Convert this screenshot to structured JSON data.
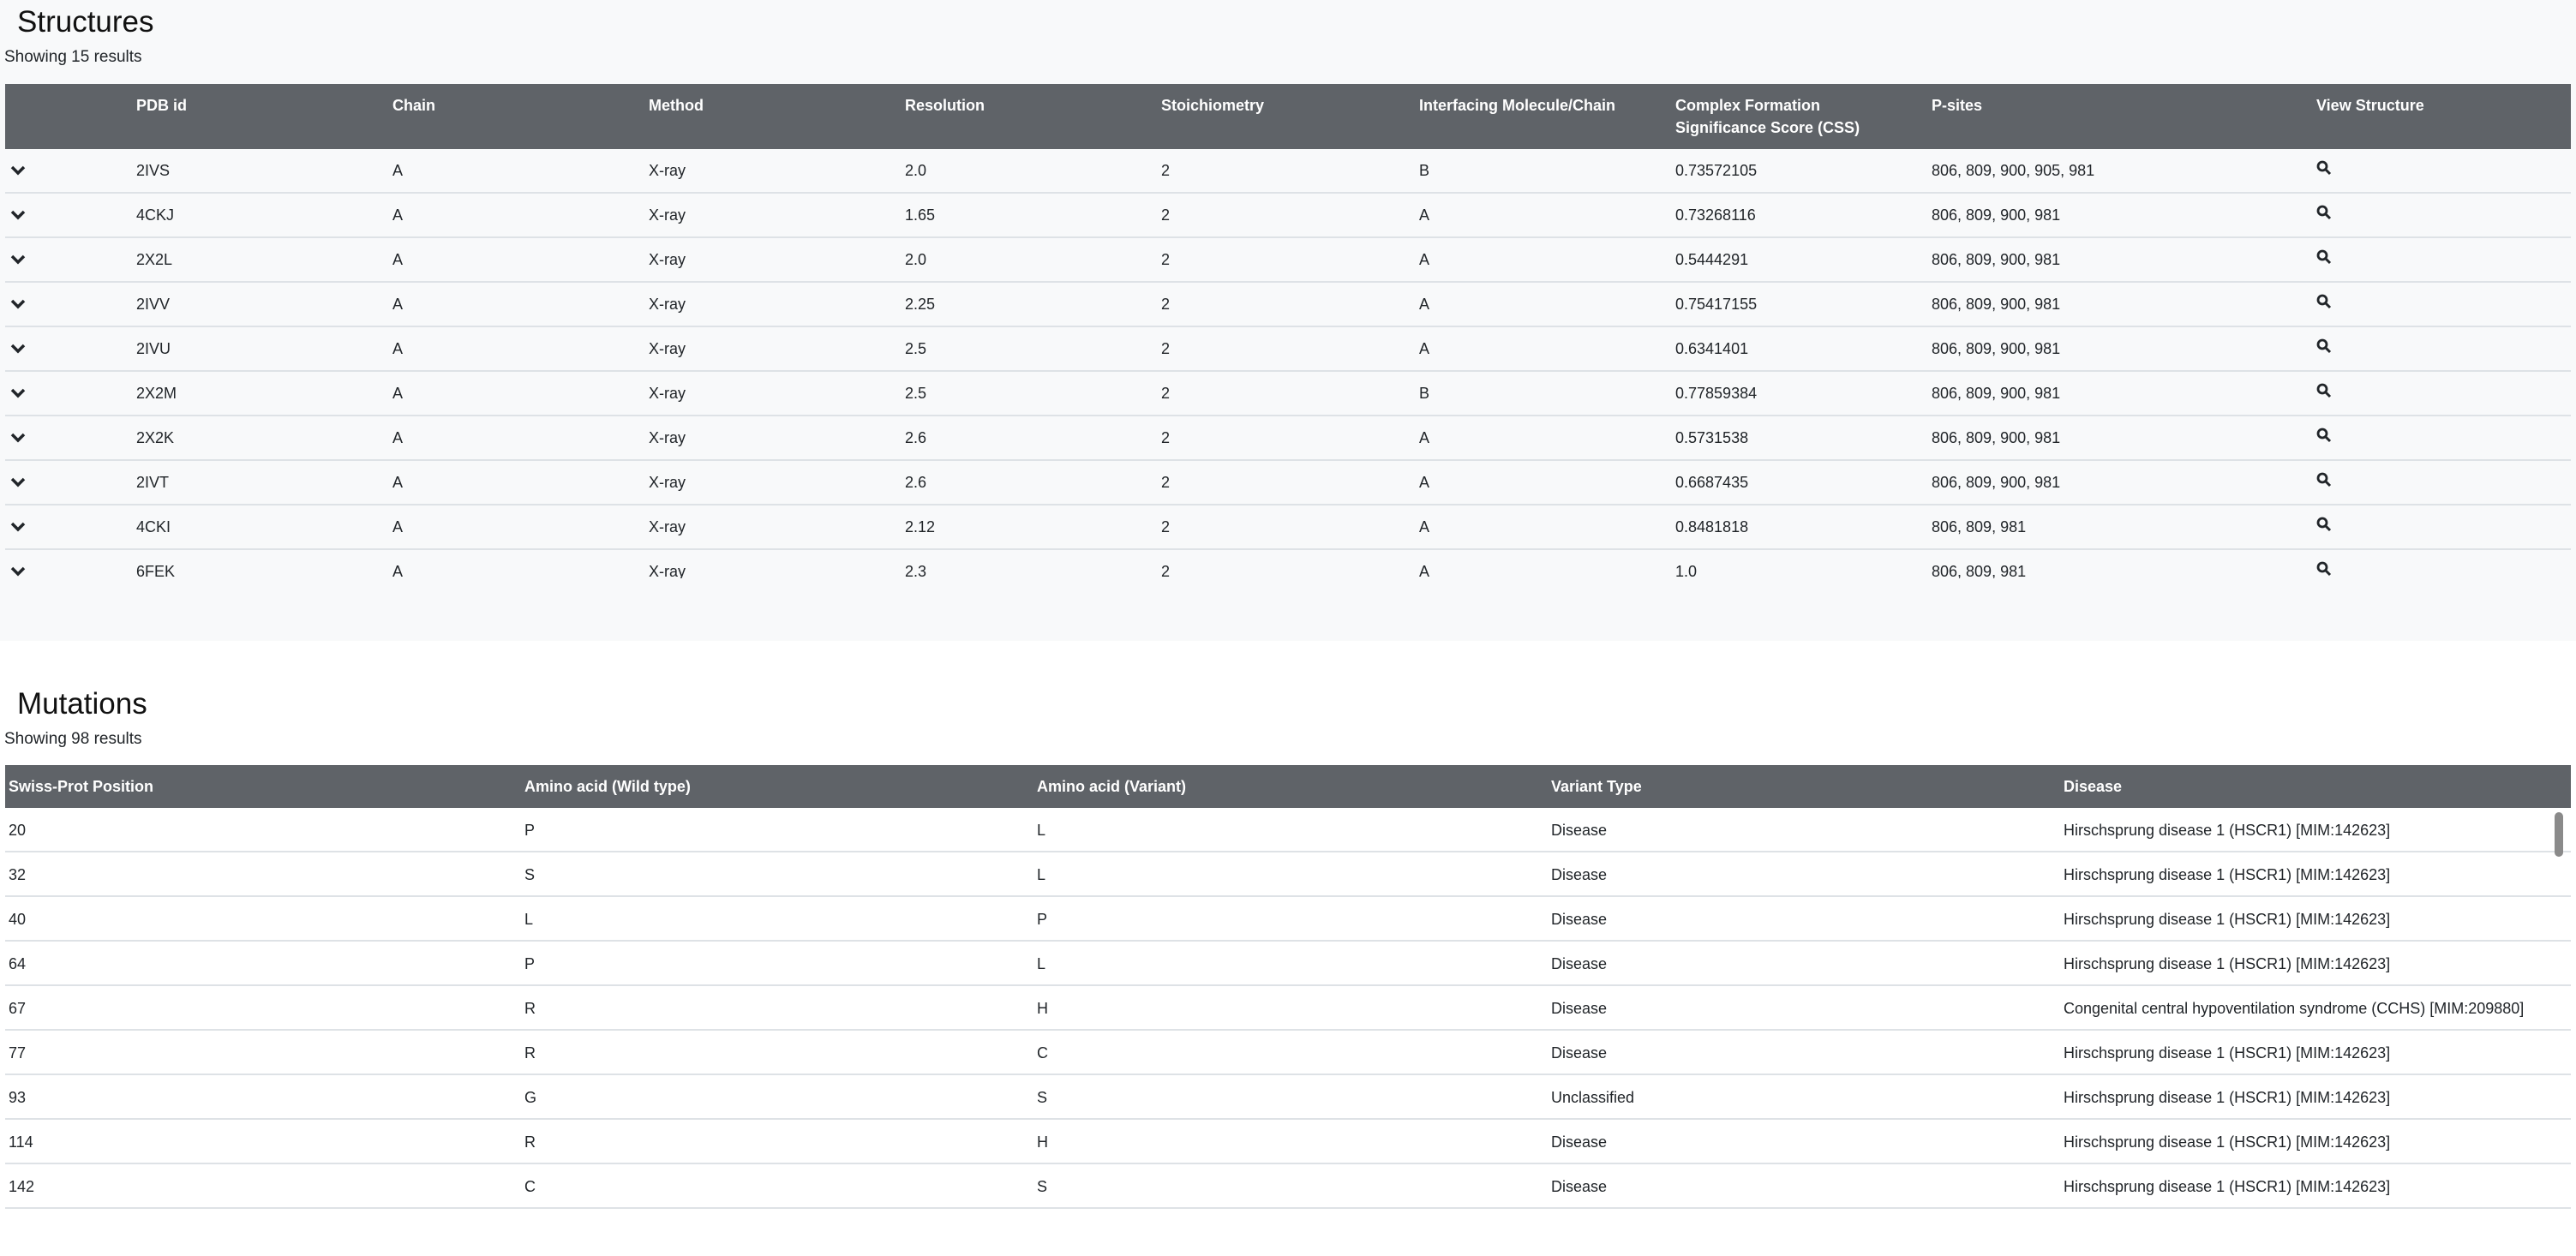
{
  "structures": {
    "title": "Structures",
    "count_text": "Showing 15 results",
    "columns": [
      "PDB id",
      "Chain",
      "Method",
      "Resolution",
      "Stoichiometry",
      "Interfacing Molecule/Chain",
      "Complex Formation Significance Score (CSS)",
      "P-sites",
      "View Structure"
    ],
    "rows": [
      [
        "2IVS",
        "A",
        "X-ray",
        "2.0",
        "2",
        "B",
        "0.73572105",
        "806, 809, 900, 905, 981"
      ],
      [
        "4CKJ",
        "A",
        "X-ray",
        "1.65",
        "2",
        "A",
        "0.73268116",
        "806, 809, 900, 981"
      ],
      [
        "2X2L",
        "A",
        "X-ray",
        "2.0",
        "2",
        "A",
        "0.5444291",
        "806, 809, 900, 981"
      ],
      [
        "2IVV",
        "A",
        "X-ray",
        "2.25",
        "2",
        "A",
        "0.75417155",
        "806, 809, 900, 981"
      ],
      [
        "2IVU",
        "A",
        "X-ray",
        "2.5",
        "2",
        "A",
        "0.6341401",
        "806, 809, 900, 981"
      ],
      [
        "2X2M",
        "A",
        "X-ray",
        "2.5",
        "2",
        "B",
        "0.77859384",
        "806, 809, 900, 981"
      ],
      [
        "2X2K",
        "A",
        "X-ray",
        "2.6",
        "2",
        "A",
        "0.5731538",
        "806, 809, 900, 981"
      ],
      [
        "2IVT",
        "A",
        "X-ray",
        "2.6",
        "2",
        "A",
        "0.6687435",
        "806, 809, 900, 981"
      ],
      [
        "4CKI",
        "A",
        "X-ray",
        "2.12",
        "2",
        "A",
        "0.8481818",
        "806, 809, 981"
      ],
      [
        "6FEK",
        "A",
        "X-ray",
        "2.3",
        "2",
        "A",
        "1.0",
        "806, 809, 981"
      ]
    ]
  },
  "mutations": {
    "title": "Mutations",
    "count_text": "Showing 98 results",
    "columns": [
      "Swiss-Prot Position",
      "Amino acid (Wild type)",
      "Amino acid (Variant)",
      "Variant Type",
      "Disease"
    ],
    "rows": [
      [
        "20",
        "P",
        "L",
        "Disease",
        "Hirschsprung disease 1 (HSCR1) [MIM:142623]"
      ],
      [
        "32",
        "S",
        "L",
        "Disease",
        "Hirschsprung disease 1 (HSCR1) [MIM:142623]"
      ],
      [
        "40",
        "L",
        "P",
        "Disease",
        "Hirschsprung disease 1 (HSCR1) [MIM:142623]"
      ],
      [
        "64",
        "P",
        "L",
        "Disease",
        "Hirschsprung disease 1 (HSCR1) [MIM:142623]"
      ],
      [
        "67",
        "R",
        "H",
        "Disease",
        "Congenital central hypoventilation syndrome (CCHS) [MIM:209880]"
      ],
      [
        "77",
        "R",
        "C",
        "Disease",
        "Hirschsprung disease 1 (HSCR1) [MIM:142623]"
      ],
      [
        "93",
        "G",
        "S",
        "Unclassified",
        "Hirschsprung disease 1 (HSCR1) [MIM:142623]"
      ],
      [
        "114",
        "R",
        "H",
        "Disease",
        "Hirschsprung disease 1 (HSCR1) [MIM:142623]"
      ],
      [
        "142",
        "C",
        "S",
        "Disease",
        "Hirschsprung disease 1 (HSCR1) [MIM:142623]"
      ]
    ]
  }
}
